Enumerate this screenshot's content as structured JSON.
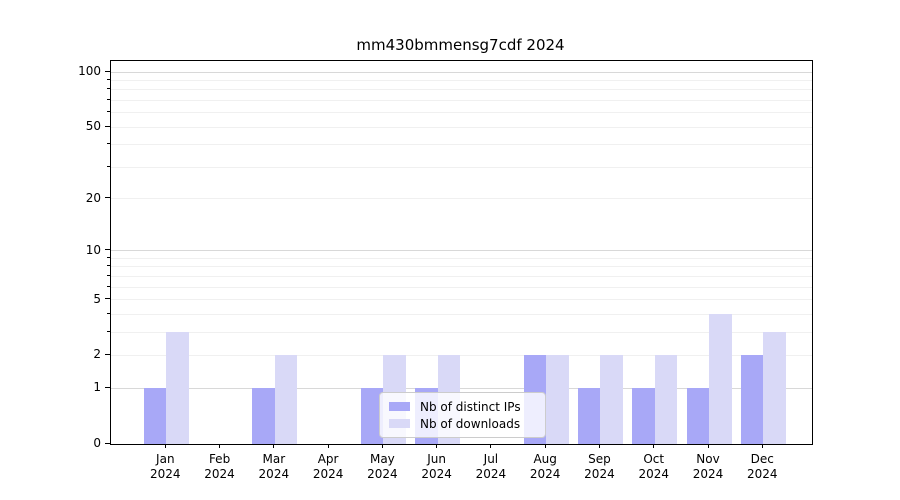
{
  "chart_data": {
    "type": "bar",
    "title": "mm430bmmensg7cdf 2024",
    "xlabel": "",
    "ylabel": "",
    "categories": [
      "Jan 2024",
      "Feb 2024",
      "Mar 2024",
      "Apr 2024",
      "May 2024",
      "Jun 2024",
      "Jul 2024",
      "Aug 2024",
      "Sep 2024",
      "Oct 2024",
      "Nov 2024",
      "Dec 2024"
    ],
    "series": [
      {
        "name": "Nb of distinct IPs",
        "color": "#a8a8f7",
        "values": [
          1,
          0,
          1,
          0,
          1,
          1,
          0,
          2,
          1,
          1,
          1,
          2
        ]
      },
      {
        "name": "Nb of downloads",
        "color": "#d9d9f7",
        "values": [
          3,
          0,
          2,
          0,
          2,
          2,
          0,
          2,
          2,
          2,
          4,
          3
        ]
      }
    ],
    "yscale": "log1p",
    "ylim": [
      0,
      115
    ],
    "y_ticks": [
      0,
      1,
      2,
      5,
      10,
      20,
      50,
      100
    ],
    "grid_major": [
      1,
      10,
      100
    ],
    "grid_minor": [
      2,
      3,
      4,
      5,
      6,
      7,
      8,
      9,
      20,
      30,
      40,
      50,
      60,
      70,
      80,
      90
    ],
    "y_minor_ticks": [
      3,
      4,
      6,
      7,
      8,
      9,
      30,
      40,
      60,
      70,
      80,
      90
    ],
    "grid": "on",
    "legend_position": "inside lower-center"
  }
}
